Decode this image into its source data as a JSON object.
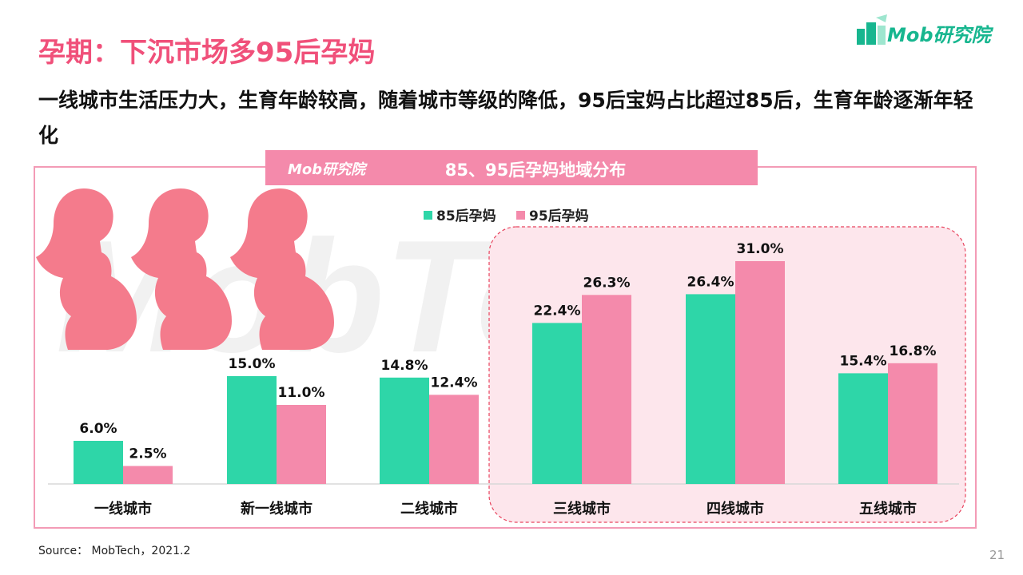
{
  "header": {
    "title": "孕期：下沉市场多95后孕妈",
    "logo_text": "Mob研究院",
    "subtitle": "一线城市生活压力大，生育年龄较高，随着城市等级的降低，95后宝妈占比超过85后，生育年龄逐渐年轻化"
  },
  "banner": {
    "logo_text": "Mob研究院",
    "title": "85、95后孕妈地域分布"
  },
  "watermark": "MobTech",
  "colors": {
    "series_85": "#2ed6a8",
    "series_95": "#f48aab",
    "title": "#f0507a",
    "highlight_bg": "#fde6ec",
    "highlight_border": "#e8445e",
    "silhouette": "#f47b8c"
  },
  "chart_data": {
    "type": "bar",
    "title": "85、95后孕妈地域分布",
    "categories": [
      "一线城市",
      "新一线城市",
      "二线城市",
      "三线城市",
      "四线城市",
      "五线城市"
    ],
    "series": [
      {
        "name": "85后孕妈",
        "values": [
          6.0,
          15.0,
          14.8,
          22.4,
          26.4,
          15.4
        ],
        "labels": [
          "6.0%",
          "15.0%",
          "14.8%",
          "22.4%",
          "26.4%",
          "15.4%"
        ]
      },
      {
        "name": "95后孕妈",
        "values": [
          2.5,
          11.0,
          12.4,
          26.3,
          31.0,
          16.8
        ],
        "labels": [
          "2.5%",
          "11.0%",
          "12.4%",
          "26.3%",
          "31.0%",
          "16.8%"
        ]
      }
    ],
    "unit": "%",
    "ylim": [
      0,
      35
    ],
    "legend": "top-center",
    "highlighted_categories": [
      "三线城市",
      "四线城市",
      "五线城市"
    ],
    "grid": false
  },
  "footer": {
    "source": "Source： MobTech，2021.2",
    "page_number": "21"
  }
}
